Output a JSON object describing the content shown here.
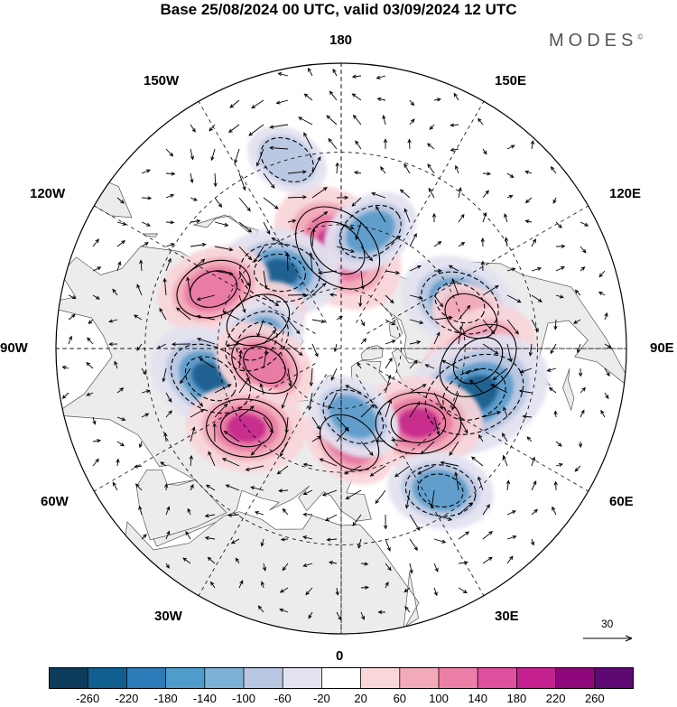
{
  "title": "Base 25/08/2024 00 UTC, valid 03/09/2024 12 UTC",
  "brand": "MODES",
  "brand_mark": "©",
  "longitude_labels": {
    "lon_180": "180",
    "lon_150e": "150E",
    "lon_120e": "120E",
    "lon_90e": "90E",
    "lon_60e": "60E",
    "lon_30e": "30E",
    "lon_0": "0",
    "lon_30w": "30W",
    "lon_60w": "60W",
    "lon_90w": "90W",
    "lon_120w": "120W",
    "lon_150w": "150W"
  },
  "reference_vector_label": "30",
  "colorbar": {
    "colors": [
      "#0d3b5c",
      "#115e91",
      "#2b7bb8",
      "#4f9ccb",
      "#7db2d7",
      "#b9c7e2",
      "#e3e2f0",
      "#ffffff",
      "#f8d6da",
      "#f2aab9",
      "#ec7fa7",
      "#e0509e",
      "#c4208f",
      "#8e087c",
      "#5e0873"
    ],
    "tick_labels": [
      "-260",
      "-220",
      "-180",
      "-140",
      "-100",
      "-60",
      "-20",
      "20",
      "60",
      "100",
      "140",
      "180",
      "220",
      "260"
    ]
  },
  "anomaly_colors": {
    "neg_strong": "#1f5f8f",
    "neg_mid": "#5d9ccb",
    "neg_weak": "#b9c7e2",
    "neg_faint": "#e3e2f0",
    "pos_faint": "#f8d6da",
    "pos_weak": "#f2aab9",
    "pos_mid": "#e87aa3",
    "pos_strong": "#c62a8c",
    "land": "#ececec"
  },
  "anomaly_centers": [
    {
      "lon": 178,
      "lat": 57,
      "sign": 1,
      "level": 220
    },
    {
      "lon": -111,
      "lat": 49,
      "sign": -1,
      "level": 160
    },
    {
      "lon": 141,
      "lat": 58,
      "sign": -1,
      "level": 160
    },
    {
      "lon": 109,
      "lat": 61,
      "sign": 1,
      "level": 100
    },
    {
      "lon": 115,
      "lat": 45,
      "sign": 1,
      "level": 140
    },
    {
      "lon": 95,
      "lat": 62,
      "sign": -1,
      "level": 120
    },
    {
      "lon": -104,
      "lat": 47,
      "sign": 1,
      "level": 60
    },
    {
      "lon": -85,
      "lat": 46,
      "sign": 1,
      "level": 180
    },
    {
      "lon": -71,
      "lat": 45,
      "sign": -1,
      "level": 250
    },
    {
      "lon": -46,
      "lat": 55,
      "sign": 1,
      "level": 180
    },
    {
      "lon": 77,
      "lat": 47,
      "sign": -1,
      "level": 180
    },
    {
      "lon": 78,
      "lat": 64,
      "sign": 1,
      "level": 120
    },
    {
      "lon": 50,
      "lat": 50,
      "sign": 1,
      "level": 160
    },
    {
      "lon": -35,
      "lat": 36,
      "sign": -1,
      "level": 120
    },
    {
      "lon": -5,
      "lat": 59,
      "sign": 1,
      "level": 100
    },
    {
      "lon": -10,
      "lat": 67,
      "sign": -1,
      "level": 100
    },
    {
      "lon": -166,
      "lat": 51,
      "sign": -1,
      "level": 100
    },
    {
      "lon": 164,
      "lat": 30,
      "sign": -1,
      "level": 60
    }
  ]
}
